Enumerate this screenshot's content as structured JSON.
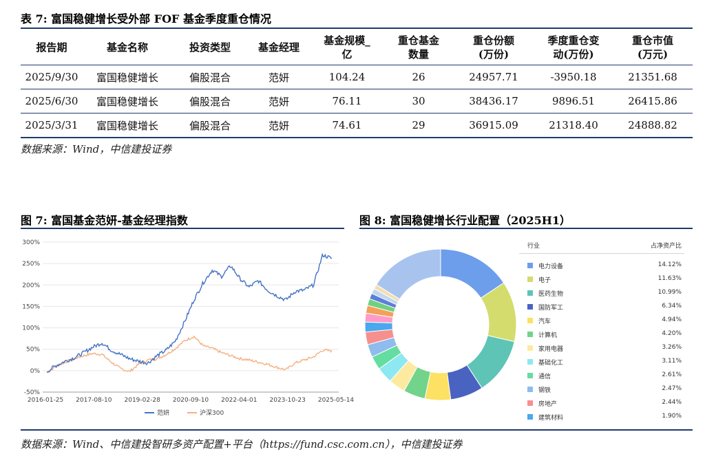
{
  "table7": {
    "title": "表 7: 富国稳健增长受外部 FOF 基金季度重仓情况",
    "headers": [
      [
        "报告期"
      ],
      [
        "基金名称"
      ],
      [
        "投资类型"
      ],
      [
        "基金经理"
      ],
      [
        "基金规模_",
        "亿"
      ],
      [
        "重仓基金",
        "数量"
      ],
      [
        "重仓份额",
        "(万份)"
      ],
      [
        "季度重仓变",
        "动(万份)"
      ],
      [
        "重仓市值",
        "(万元)"
      ]
    ],
    "rows": [
      [
        "2025/9/30",
        "富国稳健增长",
        "偏股混合",
        "范妍",
        "104.24",
        "26",
        "24957.71",
        "-3950.18",
        "21351.68"
      ],
      [
        "2025/6/30",
        "富国稳健增长",
        "偏股混合",
        "范妍",
        "76.11",
        "30",
        "38436.17",
        "9896.51",
        "26415.86"
      ],
      [
        "2025/3/31",
        "富国稳健增长",
        "偏股混合",
        "范妍",
        "74.61",
        "29",
        "36915.09",
        "21318.40",
        "24888.82"
      ]
    ],
    "source": "数据来源：Wind，中信建投证券"
  },
  "fig7": {
    "title": "图 7: 富国基金范妍-基金经理指数"
  },
  "fig8": {
    "title": "图 8: 富国稳健增长行业配置（2025H1）"
  },
  "footer_source": "数据来源：Wind、中信建投智研多资产配置+平台（https://fund.csc.com.cn），中信建投证券",
  "chart_data": [
    {
      "type": "line",
      "title": "",
      "x_ticks": [
        "2016-01-25",
        "2017-08-10",
        "2019-02-28",
        "2020-09-10",
        "2022-04-01",
        "2023-10-23",
        "2025-05-14"
      ],
      "y_ticks": [
        "300%",
        "250%",
        "200%",
        "150%",
        "100%",
        "50%",
        "0%",
        "-50%"
      ],
      "ylim": [
        -50,
        300
      ],
      "grid": true,
      "legend_position": "bottom",
      "series": [
        {
          "name": "范妍",
          "color": "#4472c4",
          "values": [
            -2,
            12,
            22,
            30,
            42,
            55,
            65,
            48,
            38,
            28,
            22,
            18,
            35,
            48,
            70,
            115,
            165,
            205,
            235,
            220,
            245,
            215,
            195,
            210,
            188,
            175,
            165,
            185,
            188,
            200,
            270,
            262
          ]
        },
        {
          "name": "沪深300",
          "color": "#f4b183",
          "values": [
            -5,
            10,
            20,
            28,
            35,
            40,
            38,
            20,
            5,
            -2,
            15,
            25,
            28,
            38,
            52,
            70,
            80,
            58,
            52,
            42,
            35,
            28,
            25,
            20,
            15,
            8,
            2,
            18,
            25,
            32,
            48,
            46
          ]
        }
      ]
    },
    {
      "type": "pie",
      "title": "",
      "legend_header": [
        "行业",
        "占净资产比"
      ],
      "slices": [
        {
          "label": "电力设备",
          "value": 14.12,
          "text": "14.12%",
          "color": "#6d9eeb"
        },
        {
          "label": "电子",
          "value": 11.63,
          "text": "11.63%",
          "color": "#d4dc6e"
        },
        {
          "label": "医药生物",
          "value": 10.99,
          "text": "10.99%",
          "color": "#5ec4b6"
        },
        {
          "label": "国防军工",
          "value": 6.34,
          "text": "6.34%",
          "color": "#4a63c0"
        },
        {
          "label": "汽车",
          "value": 4.94,
          "text": "4.94%",
          "color": "#fce162"
        },
        {
          "label": "计算机",
          "value": 4.2,
          "text": "4.20%",
          "color": "#72d48a"
        },
        {
          "label": "家用电器",
          "value": 3.26,
          "text": "3.26%",
          "color": "#fdeaa0"
        },
        {
          "label": "基础化工",
          "value": 3.11,
          "text": "3.11%",
          "color": "#8de8f2"
        },
        {
          "label": "通信",
          "value": 2.61,
          "text": "2.61%",
          "color": "#66dda0"
        },
        {
          "label": "钢铁",
          "value": 2.47,
          "text": "2.47%",
          "color": "#8fbbee"
        },
        {
          "label": "房地产",
          "value": 2.44,
          "text": "2.44%",
          "color": "#f6908e"
        },
        {
          "label": "建筑材料",
          "value": 1.9,
          "text": "1.90%",
          "color": "#49a8ee"
        },
        {
          "label": "",
          "value": 1.7,
          "text": "",
          "color": "#ff9bc8"
        },
        {
          "label": "",
          "value": 1.5,
          "text": "",
          "color": "#f3a15a"
        },
        {
          "label": "",
          "value": 1.3,
          "text": "",
          "color": "#6fd07f"
        },
        {
          "label": "",
          "value": 1.1,
          "text": "",
          "color": "#5d7fd6"
        },
        {
          "label": "",
          "value": 1.0,
          "text": "",
          "color": "#bfd7f2"
        },
        {
          "label": "",
          "value": 0.9,
          "text": "",
          "color": "#f5deb0"
        },
        {
          "label": "",
          "value": 14.5,
          "text": "",
          "color": "#a8c4ee"
        }
      ]
    }
  ]
}
